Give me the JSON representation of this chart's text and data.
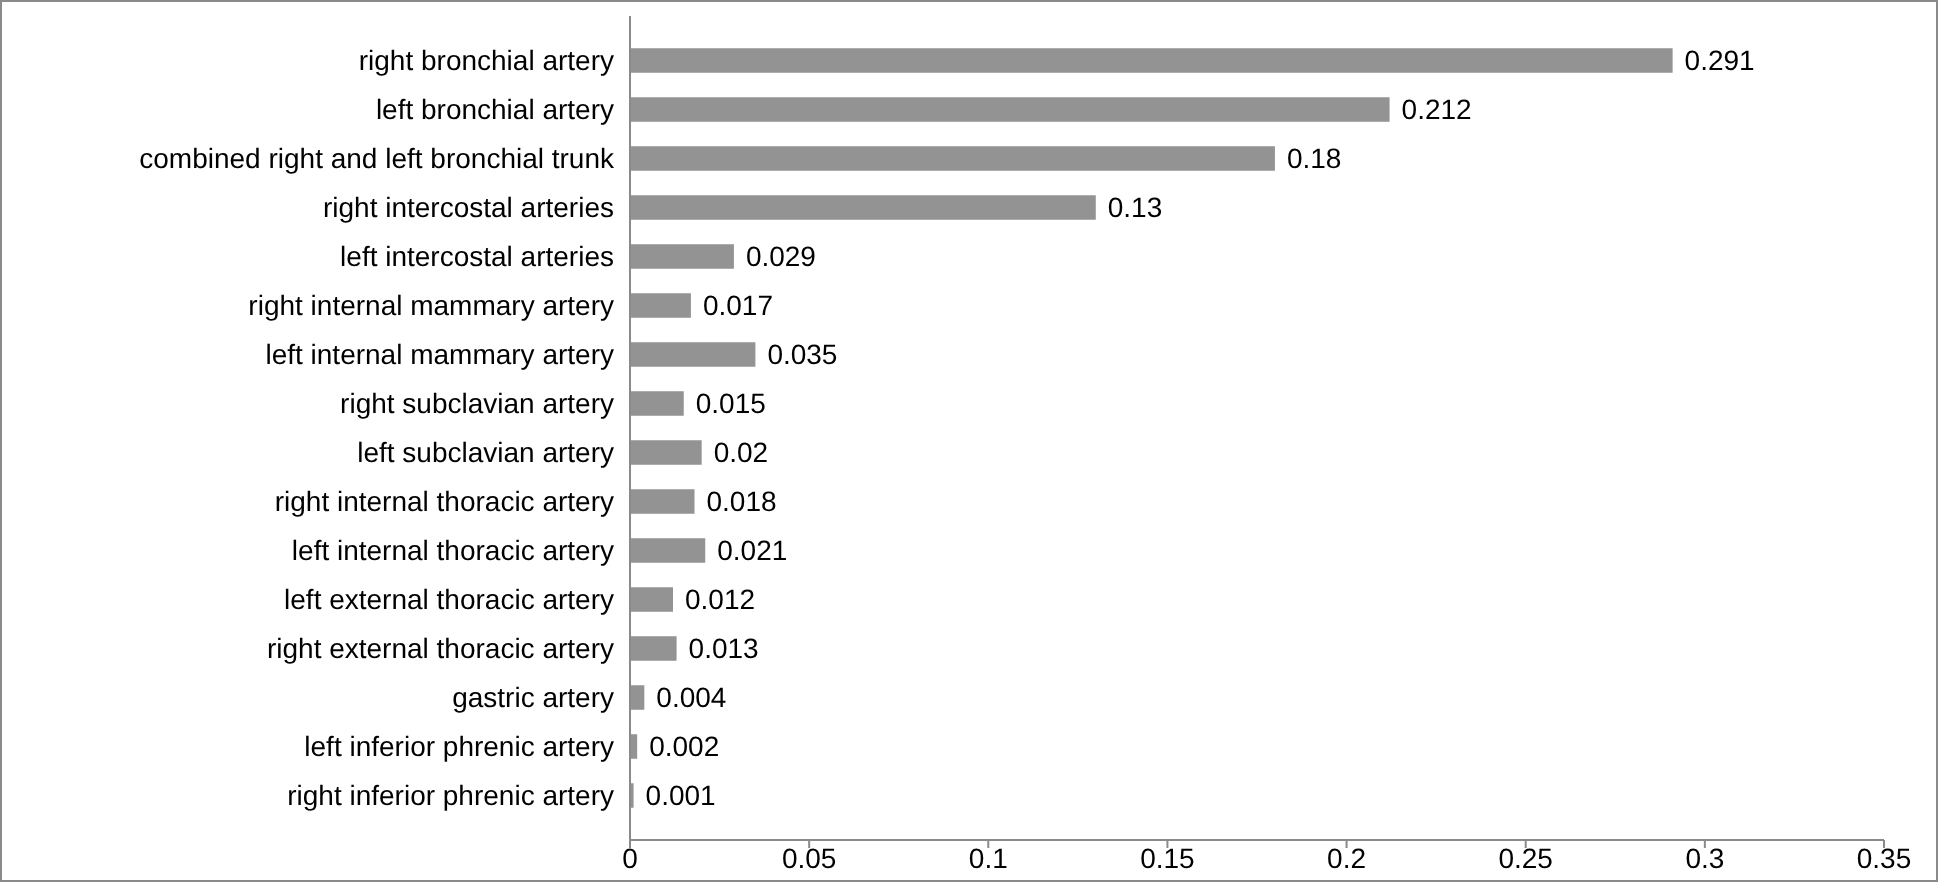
{
  "chart_data": {
    "type": "bar",
    "orientation": "horizontal",
    "categories": [
      "right bronchial artery",
      "left bronchial artery",
      "combined right and left bronchial trunk",
      "right intercostal arteries",
      "left intercostal arteries",
      "right internal mammary artery",
      "left internal mammary artery",
      "right subclavian artery",
      "left subclavian artery",
      "right internal thoracic artery",
      "left internal thoracic artery",
      "left external thoracic artery",
      "right external thoracic artery",
      "gastric artery",
      "left inferior phrenic artery",
      "right inferior phrenic artery"
    ],
    "values": [
      0.291,
      0.212,
      0.18,
      0.13,
      0.029,
      0.017,
      0.035,
      0.015,
      0.02,
      0.018,
      0.021,
      0.012,
      0.013,
      0.004,
      0.002,
      0.001
    ],
    "color": "#939393",
    "data_labels": true,
    "xlim": [
      0,
      0.35
    ],
    "xticks": [
      0,
      0.05,
      0.1,
      0.15,
      0.2,
      0.25,
      0.3,
      0.35
    ],
    "grid": false
  }
}
